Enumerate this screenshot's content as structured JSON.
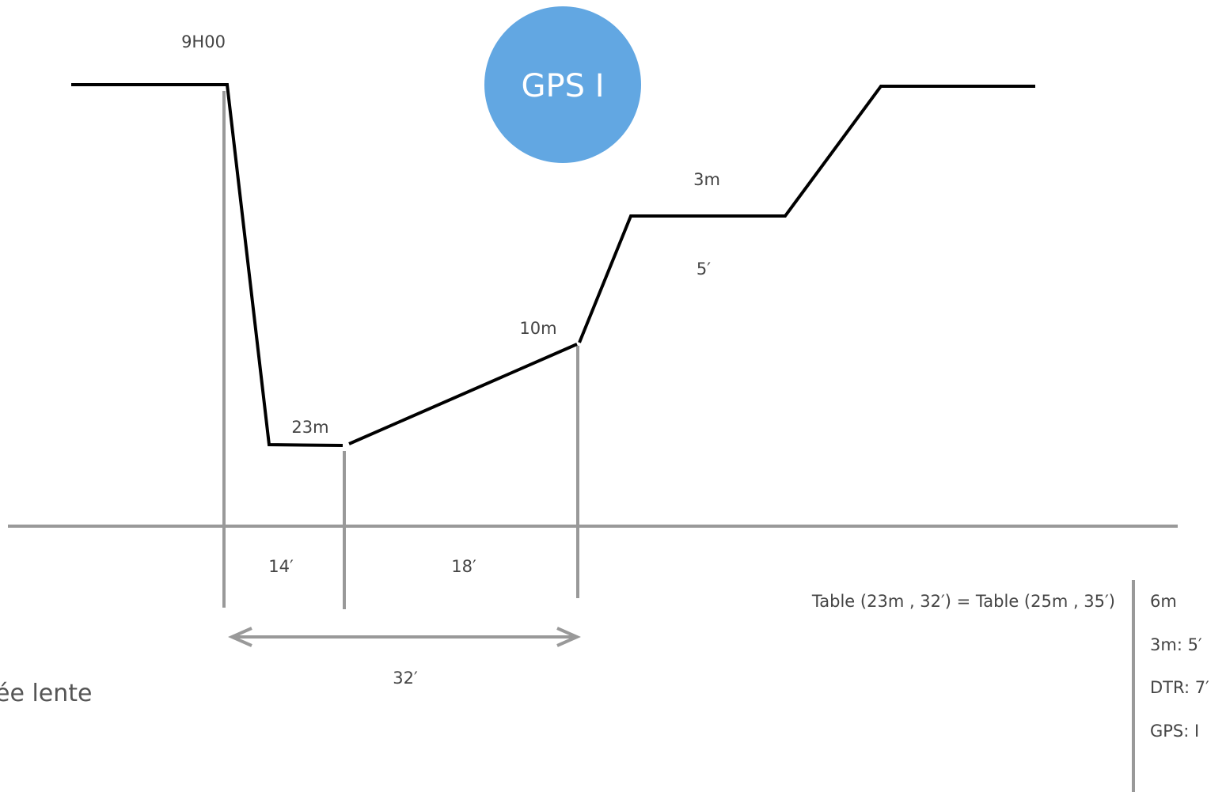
{
  "labels": {
    "start_time": "9H00",
    "gps_badge": "GPS I",
    "depth_max": "23m",
    "depth_ascent": "10m",
    "stop_depth": "3m",
    "stop_duration": "5′",
    "interval_1": "14′",
    "interval_2": "18′",
    "total_time": "32′",
    "caption": "ée lente"
  },
  "table": {
    "equation": "Table (23m , 32′) = Table (25m , 35′)",
    "results": [
      "6m",
      "3m: 5′",
      "DTR: 7′",
      "GPS: I"
    ]
  },
  "colors": {
    "profile_line": "#000000",
    "guide_line": "#999999",
    "badge_fill": "#62a7e2",
    "text": "#555555"
  }
}
